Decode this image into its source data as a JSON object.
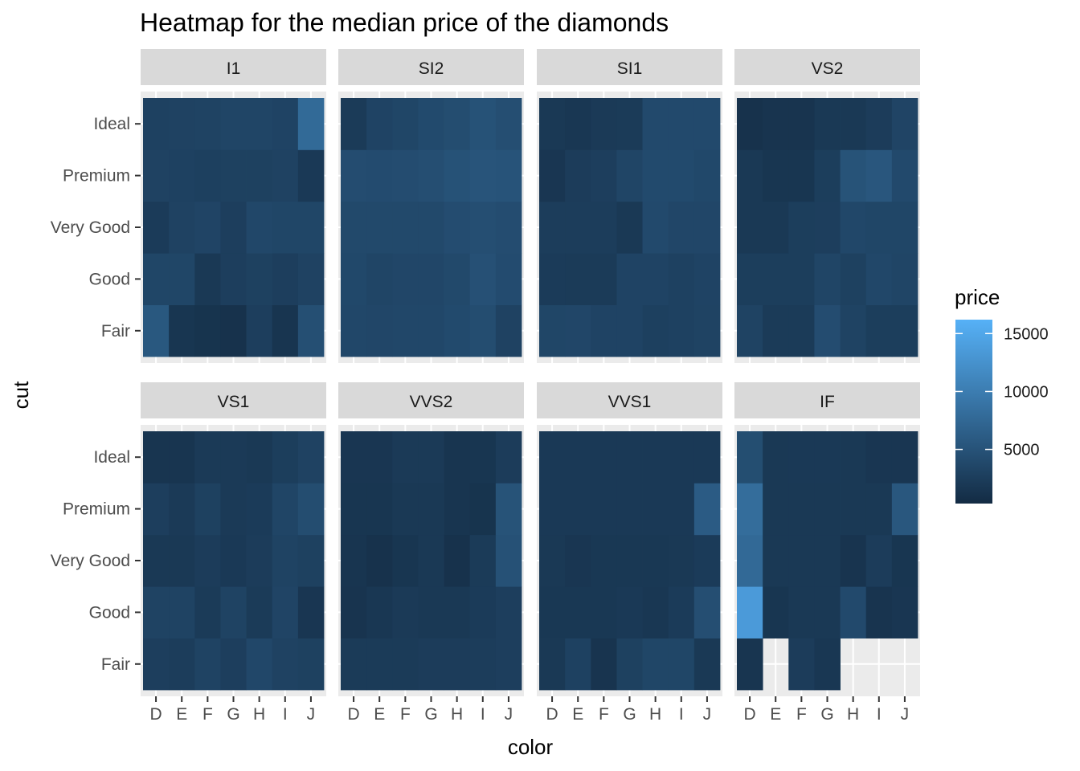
{
  "chart_data": {
    "type": "heatmap",
    "title": "Heatmap for the median price of the diamonds",
    "xlabel": "color",
    "ylabel": "cut",
    "x_categories": [
      "D",
      "E",
      "F",
      "G",
      "H",
      "I",
      "J"
    ],
    "y_categories": [
      "Fair",
      "Good",
      "Very Good",
      "Premium",
      "Ideal"
    ],
    "facet_by": "clarity",
    "legend": {
      "title": "price",
      "ticks": [
        "5000",
        "10000",
        "15000"
      ],
      "position": "right",
      "color_low": "#132B43",
      "color_high": "#56B1F7"
    },
    "facets": [
      {
        "label": "I1",
        "values": {
          "Ideal": [
            3400,
            3500,
            3600,
            3900,
            3900,
            3700,
            9000
          ],
          "Premium": [
            3500,
            3400,
            3200,
            3300,
            3300,
            3500,
            2300
          ],
          "Very Good": [
            2600,
            3500,
            3800,
            3000,
            4200,
            4000,
            4000
          ],
          "Good": [
            4000,
            4000,
            2200,
            3000,
            3300,
            3000,
            3500
          ],
          "Fair": [
            6500,
            1800,
            1500,
            1300,
            3000,
            1700,
            5300
          ]
        }
      },
      {
        "label": "SI2",
        "values": {
          "Ideal": [
            2500,
            3700,
            4000,
            4600,
            5000,
            5700,
            5200
          ],
          "Premium": [
            4900,
            4800,
            4900,
            5200,
            5700,
            6000,
            5900
          ],
          "Very Good": [
            4400,
            4400,
            4400,
            4400,
            4900,
            5200,
            4900
          ],
          "Good": [
            4300,
            3900,
            4100,
            4100,
            4400,
            5500,
            4800
          ],
          "Fair": [
            4200,
            4100,
            4200,
            4200,
            4600,
            5000,
            3500
          ]
        }
      },
      {
        "label": "SI1",
        "values": {
          "Ideal": [
            2200,
            2000,
            2400,
            2500,
            4500,
            4500,
            4500
          ],
          "Premium": [
            1900,
            2700,
            3000,
            3900,
            4600,
            4600,
            4300
          ],
          "Very Good": [
            2800,
            2800,
            2800,
            2200,
            4500,
            4100,
            4100
          ],
          "Good": [
            2600,
            2500,
            2500,
            3700,
            3700,
            3400,
            3700
          ],
          "Fair": [
            4000,
            4100,
            3700,
            3700,
            3200,
            3400,
            3600
          ]
        }
      },
      {
        "label": "VS2",
        "values": {
          "Ideal": [
            1300,
            1600,
            1600,
            2200,
            2200,
            2700,
            3800
          ],
          "Premium": [
            2200,
            1800,
            1800,
            2900,
            5800,
            6300,
            4500
          ],
          "Very Good": [
            2200,
            2200,
            2900,
            3000,
            4200,
            4000,
            4000
          ],
          "Good": [
            2900,
            2900,
            2900,
            3900,
            3300,
            4200,
            3900
          ],
          "Fair": [
            3600,
            2500,
            2500,
            4900,
            3600,
            2900,
            2900
          ]
        }
      },
      {
        "label": "VS1",
        "values": {
          "Ideal": [
            1700,
            1700,
            2400,
            2400,
            2200,
            2900,
            3500
          ],
          "Premium": [
            3000,
            2400,
            3300,
            2400,
            2600,
            3900,
            5000
          ],
          "Very Good": [
            2200,
            2200,
            2700,
            2300,
            2700,
            3600,
            3300
          ],
          "Good": [
            3600,
            3600,
            2500,
            3600,
            2500,
            3800,
            1900
          ],
          "Fair": [
            3000,
            2800,
            3600,
            3000,
            4200,
            3500,
            3300
          ]
        }
      },
      {
        "label": "VVS2",
        "values": {
          "Ideal": [
            1900,
            1900,
            2400,
            2400,
            1700,
            1800,
            2700
          ],
          "Premium": [
            1800,
            1800,
            2200,
            2200,
            1700,
            1500,
            5800
          ],
          "Very Good": [
            1700,
            1300,
            1800,
            2200,
            1300,
            2500,
            5600
          ],
          "Good": [
            1600,
            2000,
            2400,
            2200,
            2200,
            2600,
            3000
          ],
          "Fair": [
            2500,
            2500,
            2500,
            2700,
            2700,
            2800,
            3000
          ]
        }
      },
      {
        "label": "VVS1",
        "values": {
          "Ideal": [
            2300,
            2300,
            2300,
            2300,
            2300,
            2300,
            2300
          ],
          "Premium": [
            2300,
            2300,
            2300,
            2300,
            2300,
            2300,
            7000
          ],
          "Very Good": [
            2200,
            1900,
            2100,
            2100,
            2100,
            2200,
            2600
          ],
          "Good": [
            2100,
            2100,
            2100,
            2300,
            2000,
            2600,
            5200
          ],
          "Fair": [
            2200,
            3400,
            1600,
            3300,
            4000,
            4000,
            2200
          ]
        }
      },
      {
        "label": "IF",
        "values": {
          "Ideal": [
            5100,
            2200,
            2300,
            2300,
            2200,
            1900,
            1900
          ],
          "Premium": [
            9400,
            2200,
            2200,
            2200,
            2200,
            2200,
            6400
          ],
          "Very Good": [
            8900,
            2200,
            2200,
            2200,
            1600,
            2700,
            1800
          ],
          "Good": [
            15700,
            1800,
            2200,
            2200,
            4500,
            1600,
            1900
          ],
          "Fair": [
            1700,
            null,
            2700,
            2000,
            null,
            null,
            null
          ]
        }
      }
    ]
  }
}
